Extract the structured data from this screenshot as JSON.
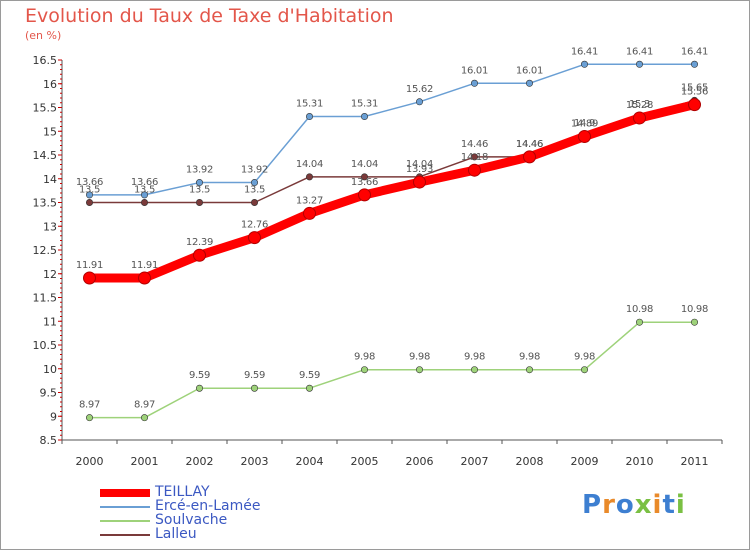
{
  "header": {
    "title": "Evolution du Taux de Taxe d'Habitation",
    "unit": "(en %)"
  },
  "logo": {
    "text": "Proxiti",
    "letter_colors": [
      "#3d7fd1",
      "#e98a2a",
      "#3d7fd1",
      "#7ac043",
      "#e98a2a",
      "#3d7fd1",
      "#7ac043"
    ]
  },
  "chart_data": {
    "type": "line",
    "title": "Evolution du Taux de Taxe d'Habitation",
    "ylabel": "(en %)",
    "x": [
      "2000",
      "2001",
      "2002",
      "2003",
      "2004",
      "2005",
      "2006",
      "2007",
      "2008",
      "2009",
      "2010",
      "2011"
    ],
    "ylim": [
      8.5,
      16.5
    ],
    "yticks": [
      "8.5",
      "9",
      "9.5",
      "10",
      "10.5",
      "11",
      "11.5",
      "12",
      "12.5",
      "13",
      "13.5",
      "14",
      "14.5",
      "15",
      "15.5",
      "16",
      "16.5"
    ],
    "grid": false,
    "legend_position": "bottom-left",
    "series": [
      {
        "name": "TEILLAY",
        "color": "#ff0000",
        "values": [
          11.91,
          11.91,
          12.39,
          12.76,
          13.27,
          13.66,
          13.93,
          14.18,
          14.46,
          14.89,
          15.28,
          15.56
        ],
        "labels": [
          "11.91",
          "11.91",
          "12.39",
          "12.76",
          "13.27",
          "13.66",
          "13.93",
          "14.18",
          "14.46",
          "14.89",
          "15.28",
          "15.56"
        ]
      },
      {
        "name": "Ercé-en-Lamée",
        "color": "#6a9fd4",
        "values": [
          13.66,
          13.66,
          13.92,
          13.92,
          15.31,
          15.31,
          15.62,
          16.01,
          16.01,
          16.41,
          16.41,
          16.41
        ],
        "labels": [
          "13.66",
          "13.66",
          "13.92",
          "13.92",
          "15.31",
          "15.31",
          "15.62",
          "16.01",
          "16.01",
          "16.41",
          "16.41",
          "16.41"
        ]
      },
      {
        "name": "Soulvache",
        "color": "#9ed27a",
        "values": [
          8.97,
          8.97,
          9.59,
          9.59,
          9.59,
          9.98,
          9.98,
          9.98,
          9.98,
          9.98,
          10.98,
          10.98
        ],
        "labels": [
          "8.97",
          "8.97",
          "9.59",
          "9.59",
          "9.59",
          "9.98",
          "9.98",
          "9.98",
          "9.98",
          "9.98",
          "10.98",
          "10.98"
        ]
      },
      {
        "name": "Lalleu",
        "color": "#7a3a3a",
        "values": [
          13.5,
          13.5,
          13.5,
          13.5,
          14.04,
          14.04,
          14.04,
          14.46,
          14.46,
          14.9,
          15.3,
          15.65
        ],
        "labels": [
          "13.5",
          "13.5",
          "13.5",
          "13.5",
          "14.04",
          "14.04",
          "14.04",
          "14.46",
          "14.46",
          "14.9",
          "15.3",
          "15.65"
        ]
      }
    ]
  }
}
